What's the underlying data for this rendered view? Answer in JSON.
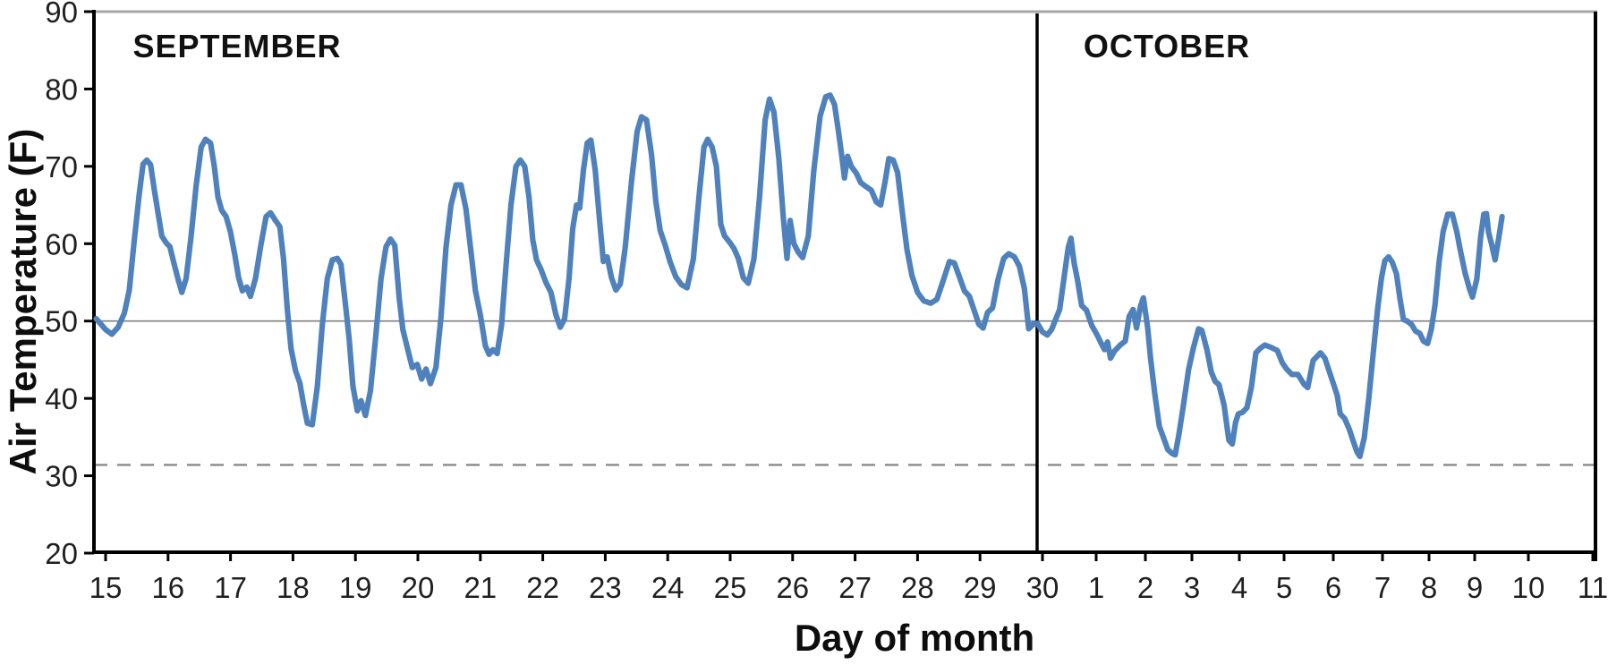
{
  "months": {
    "september": "SEPTEMBER",
    "october": "OCTOBER"
  },
  "y_axis": {
    "title": "Air Temperature (F)",
    "tick_labels": [
      "90",
      "80",
      "70",
      "60",
      "50",
      "40",
      "30",
      "20"
    ]
  },
  "x_axis": {
    "title": "Day of month",
    "september_day_labels": [
      "15",
      "16",
      "17",
      "18",
      "19",
      "20",
      "21",
      "22",
      "23",
      "24",
      "25",
      "26",
      "27",
      "28",
      "29",
      "30"
    ],
    "october_day_labels": [
      "1",
      "2",
      "3",
      "4",
      "5",
      "6",
      "7",
      "8",
      "9",
      "10",
      "11"
    ]
  },
  "reference_lines": {
    "solid_value": 50,
    "dashed_value": 31.4
  },
  "colors": {
    "line": "#4f81bd",
    "axis": "#000000",
    "tick_text": "#1f1f1f",
    "solid_ref": "#7f7f7f",
    "dashed_ref": "#8a8a8a",
    "top_border": "#a6a6a6",
    "month_divider": "#000000",
    "background": "#ffffff"
  },
  "chart_data": {
    "type": "line",
    "title": "",
    "xlabel": "Day of month",
    "ylabel": "Air Temperature (F)",
    "ylim": [
      20,
      90
    ],
    "yticks": [
      20,
      30,
      40,
      50,
      60,
      70,
      80,
      90
    ],
    "x_encoding": "days since September 15 (0 = Sep 15, 15 = Sep 30, 16 = Oct 1, 26 = Oct 11)",
    "series_name": "air-temperature-F",
    "reference_lines": {
      "solid": 50,
      "dashed": 31.4
    },
    "month_divider_at_index": 14.9,
    "points": [
      [
        -0.15,
        50.3
      ],
      [
        0,
        48.9
      ],
      [
        0.1,
        48.3
      ],
      [
        0.2,
        49.2
      ],
      [
        0.3,
        51
      ],
      [
        0.38,
        54
      ],
      [
        0.46,
        60.5
      ],
      [
        0.54,
        66.5
      ],
      [
        0.6,
        70.3
      ],
      [
        0.66,
        70.8
      ],
      [
        0.72,
        70.2
      ],
      [
        0.78,
        67
      ],
      [
        0.84,
        64
      ],
      [
        0.9,
        61
      ],
      [
        0.97,
        60.1
      ],
      [
        1.03,
        59.6
      ],
      [
        1.09,
        57.6
      ],
      [
        1.16,
        55.4
      ],
      [
        1.22,
        53.7
      ],
      [
        1.29,
        55.5
      ],
      [
        1.37,
        61
      ],
      [
        1.45,
        67.5
      ],
      [
        1.53,
        72.5
      ],
      [
        1.6,
        73.5
      ],
      [
        1.68,
        73
      ],
      [
        1.74,
        70
      ],
      [
        1.8,
        66
      ],
      [
        1.86,
        64.3
      ],
      [
        1.93,
        63.5
      ],
      [
        2,
        61.5
      ],
      [
        2.07,
        58.5
      ],
      [
        2.13,
        55.6
      ],
      [
        2.19,
        53.9
      ],
      [
        2.26,
        54.4
      ],
      [
        2.32,
        53.2
      ],
      [
        2.4,
        55.5
      ],
      [
        2.49,
        60
      ],
      [
        2.57,
        63.5
      ],
      [
        2.64,
        64
      ],
      [
        2.72,
        63
      ],
      [
        2.79,
        62.2
      ],
      [
        2.85,
        58
      ],
      [
        2.91,
        51.5
      ],
      [
        2.97,
        46.4
      ],
      [
        3.04,
        43.6
      ],
      [
        3.11,
        42
      ],
      [
        3.17,
        39.2
      ],
      [
        3.23,
        36.8
      ],
      [
        3.31,
        36.6
      ],
      [
        3.39,
        41.5
      ],
      [
        3.47,
        49.5
      ],
      [
        3.55,
        55.5
      ],
      [
        3.63,
        57.9
      ],
      [
        3.71,
        58.1
      ],
      [
        3.77,
        57.3
      ],
      [
        3.84,
        52.2
      ],
      [
        3.9,
        47.7
      ],
      [
        3.96,
        41.6
      ],
      [
        4.03,
        38.4
      ],
      [
        4.09,
        39.7
      ],
      [
        4.16,
        37.8
      ],
      [
        4.24,
        41
      ],
      [
        4.32,
        47.5
      ],
      [
        4.41,
        55.5
      ],
      [
        4.49,
        59.6
      ],
      [
        4.56,
        60.6
      ],
      [
        4.63,
        59.8
      ],
      [
        4.7,
        53
      ],
      [
        4.76,
        48.9
      ],
      [
        4.83,
        46.6
      ],
      [
        4.91,
        44
      ],
      [
        4.99,
        44.4
      ],
      [
        5.06,
        42.5
      ],
      [
        5.13,
        43.8
      ],
      [
        5.2,
        41.9
      ],
      [
        5.29,
        44
      ],
      [
        5.37,
        50.5
      ],
      [
        5.45,
        59.5
      ],
      [
        5.53,
        65
      ],
      [
        5.61,
        67.6
      ],
      [
        5.69,
        67.6
      ],
      [
        5.77,
        64.5
      ],
      [
        5.85,
        59
      ],
      [
        5.92,
        54
      ],
      [
        6,
        50.8
      ],
      [
        6.08,
        46.8
      ],
      [
        6.14,
        45.7
      ],
      [
        6.2,
        46.3
      ],
      [
        6.27,
        45.8
      ],
      [
        6.34,
        49.5
      ],
      [
        6.41,
        57
      ],
      [
        6.49,
        65
      ],
      [
        6.57,
        70
      ],
      [
        6.64,
        70.8
      ],
      [
        6.71,
        70
      ],
      [
        6.78,
        66
      ],
      [
        6.84,
        60.5
      ],
      [
        6.9,
        57.9
      ],
      [
        6.97,
        56.7
      ],
      [
        7.05,
        55
      ],
      [
        7.13,
        53.7
      ],
      [
        7.21,
        50.8
      ],
      [
        7.28,
        49.2
      ],
      [
        7.35,
        50.3
      ],
      [
        7.42,
        55.5
      ],
      [
        7.48,
        62
      ],
      [
        7.54,
        65
      ],
      [
        7.59,
        64.6
      ],
      [
        7.65,
        69.5
      ],
      [
        7.71,
        73
      ],
      [
        7.77,
        73.4
      ],
      [
        7.84,
        69.5
      ],
      [
        7.91,
        63
      ],
      [
        7.97,
        57.7
      ],
      [
        8.03,
        58.3
      ],
      [
        8.1,
        55.6
      ],
      [
        8.17,
        54
      ],
      [
        8.24,
        54.8
      ],
      [
        8.32,
        59.5
      ],
      [
        8.42,
        68
      ],
      [
        8.51,
        74.5
      ],
      [
        8.58,
        76.4
      ],
      [
        8.66,
        76
      ],
      [
        8.74,
        71.5
      ],
      [
        8.81,
        65.5
      ],
      [
        8.88,
        61.7
      ],
      [
        8.96,
        59.8
      ],
      [
        9.04,
        57.6
      ],
      [
        9.13,
        55.7
      ],
      [
        9.22,
        54.7
      ],
      [
        9.31,
        54.3
      ],
      [
        9.41,
        58
      ],
      [
        9.5,
        66
      ],
      [
        9.58,
        72.5
      ],
      [
        9.64,
        73.5
      ],
      [
        9.71,
        72.5
      ],
      [
        9.78,
        70
      ],
      [
        9.85,
        62.5
      ],
      [
        9.91,
        61
      ],
      [
        9.99,
        60.2
      ],
      [
        10.06,
        59.4
      ],
      [
        10.13,
        58.1
      ],
      [
        10.21,
        55.6
      ],
      [
        10.29,
        54.9
      ],
      [
        10.38,
        58
      ],
      [
        10.47,
        66
      ],
      [
        10.56,
        76
      ],
      [
        10.63,
        78.7
      ],
      [
        10.7,
        77
      ],
      [
        10.78,
        71
      ],
      [
        10.85,
        63.5
      ],
      [
        10.91,
        58.1
      ],
      [
        10.96,
        63
      ],
      [
        11.02,
        60
      ],
      [
        11.09,
        58.9
      ],
      [
        11.16,
        58.2
      ],
      [
        11.25,
        61
      ],
      [
        11.34,
        69.5
      ],
      [
        11.44,
        76.5
      ],
      [
        11.53,
        79
      ],
      [
        11.6,
        79.2
      ],
      [
        11.67,
        78
      ],
      [
        11.73,
        74.7
      ],
      [
        11.79,
        71.2
      ],
      [
        11.83,
        68.5
      ],
      [
        11.88,
        71.3
      ],
      [
        11.94,
        70
      ],
      [
        12.02,
        69.1
      ],
      [
        12.09,
        67.9
      ],
      [
        12.17,
        67.4
      ],
      [
        12.26,
        66.9
      ],
      [
        12.34,
        65.4
      ],
      [
        12.41,
        65
      ],
      [
        12.48,
        68
      ],
      [
        12.54,
        71
      ],
      [
        12.61,
        70.8
      ],
      [
        12.68,
        69.2
      ],
      [
        12.75,
        64.5
      ],
      [
        12.83,
        59.3
      ],
      [
        12.91,
        55.9
      ],
      [
        13,
        53.7
      ],
      [
        13.1,
        52.6
      ],
      [
        13.21,
        52.3
      ],
      [
        13.31,
        52.8
      ],
      [
        13.41,
        55.2
      ],
      [
        13.51,
        57.7
      ],
      [
        13.59,
        57.5
      ],
      [
        13.67,
        55.7
      ],
      [
        13.75,
        53.9
      ],
      [
        13.83,
        53.2
      ],
      [
        13.91,
        51.3
      ],
      [
        13.98,
        49.6
      ],
      [
        14.05,
        49.1
      ],
      [
        14.12,
        51.1
      ],
      [
        14.2,
        51.7
      ],
      [
        14.29,
        55.4
      ],
      [
        14.38,
        58.1
      ],
      [
        14.46,
        58.7
      ],
      [
        14.55,
        58.3
      ],
      [
        14.63,
        57.1
      ],
      [
        14.71,
        54.2
      ],
      [
        14.78,
        49
      ],
      [
        14.85,
        49.6
      ],
      [
        14.92,
        49.7
      ],
      [
        15,
        48.6
      ],
      [
        15.09,
        48.2
      ],
      [
        15.17,
        48.9
      ],
      [
        15.25,
        50.3
      ],
      [
        15.32,
        51.5
      ],
      [
        15.4,
        55.5
      ],
      [
        15.48,
        59.5
      ],
      [
        15.53,
        60.7
      ],
      [
        15.59,
        57.5
      ],
      [
        15.65,
        55.4
      ],
      [
        15.73,
        52
      ],
      [
        15.82,
        51.4
      ],
      [
        15.92,
        49.4
      ],
      [
        16.02,
        48.2
      ],
      [
        16.12,
        46.9
      ],
      [
        16.17,
        46.3
      ],
      [
        16.23,
        47.3
      ],
      [
        16.29,
        45.2
      ],
      [
        16.37,
        46.1
      ],
      [
        16.49,
        46.9
      ],
      [
        16.59,
        47.4
      ],
      [
        16.67,
        50.6
      ],
      [
        16.75,
        51.5
      ],
      [
        16.82,
        49.1
      ],
      [
        16.9,
        51.9
      ],
      [
        16.96,
        53
      ],
      [
        17.05,
        49.1
      ],
      [
        17.11,
        45.3
      ],
      [
        17.2,
        40.7
      ],
      [
        17.3,
        36.4
      ],
      [
        17.39,
        34.9
      ],
      [
        17.48,
        33.4
      ],
      [
        17.57,
        32.9
      ],
      [
        17.64,
        32.7
      ],
      [
        17.72,
        35.3
      ],
      [
        17.82,
        39.2
      ],
      [
        17.93,
        43.8
      ],
      [
        18.03,
        46.5
      ],
      [
        18.14,
        49
      ],
      [
        18.21,
        48.8
      ],
      [
        18.32,
        46.2
      ],
      [
        18.41,
        43.4
      ],
      [
        18.49,
        42.2
      ],
      [
        18.57,
        41.8
      ],
      [
        18.68,
        39.1
      ],
      [
        18.78,
        34.6
      ],
      [
        18.85,
        34.1
      ],
      [
        18.92,
        36.9
      ],
      [
        18.98,
        38
      ],
      [
        19.07,
        38.2
      ],
      [
        19.17,
        38.8
      ],
      [
        19.27,
        41.5
      ],
      [
        19.37,
        45.9
      ],
      [
        19.47,
        46.5
      ],
      [
        19.57,
        46.9
      ],
      [
        19.71,
        46.6
      ],
      [
        19.85,
        46.2
      ],
      [
        19.96,
        44.6
      ],
      [
        20.05,
        43.8
      ],
      [
        20.16,
        43.1
      ],
      [
        20.28,
        43.1
      ],
      [
        20.41,
        41.8
      ],
      [
        20.48,
        41.4
      ],
      [
        20.59,
        44.9
      ],
      [
        20.68,
        45.5
      ],
      [
        20.74,
        45.9
      ],
      [
        20.83,
        45.2
      ],
      [
        20.96,
        42.7
      ],
      [
        21.08,
        40.4
      ],
      [
        21.14,
        38
      ],
      [
        21.23,
        37.4
      ],
      [
        21.32,
        36.1
      ],
      [
        21.41,
        34.4
      ],
      [
        21.48,
        33.1
      ],
      [
        21.54,
        32.5
      ],
      [
        21.63,
        34.9
      ],
      [
        21.72,
        39.9
      ],
      [
        21.81,
        45.7
      ],
      [
        21.9,
        51.5
      ],
      [
        21.98,
        55.6
      ],
      [
        22.05,
        57.8
      ],
      [
        22.13,
        58.3
      ],
      [
        22.21,
        57.6
      ],
      [
        22.3,
        56.1
      ],
      [
        22.38,
        52.7
      ],
      [
        22.45,
        50.2
      ],
      [
        22.53,
        50
      ],
      [
        22.63,
        49.5
      ],
      [
        22.71,
        48.7
      ],
      [
        22.8,
        48.4
      ],
      [
        22.88,
        47.4
      ],
      [
        22.97,
        47.1
      ],
      [
        23.05,
        48.9
      ],
      [
        23.13,
        52
      ],
      [
        23.22,
        57.6
      ],
      [
        23.31,
        61.6
      ],
      [
        23.41,
        63.8
      ],
      [
        23.51,
        63.8
      ],
      [
        23.61,
        61.5
      ],
      [
        23.68,
        59.3
      ],
      [
        23.79,
        56.2
      ],
      [
        23.89,
        54.1
      ],
      [
        23.95,
        53.1
      ],
      [
        24.04,
        55.4
      ],
      [
        24.11,
        60.8
      ],
      [
        24.17,
        63.8
      ],
      [
        24.22,
        63.9
      ],
      [
        24.26,
        61.4
      ],
      [
        24.31,
        60.1
      ],
      [
        24.38,
        57.9
      ],
      [
        24.45,
        60.8
      ],
      [
        24.51,
        63.5
      ]
    ]
  }
}
